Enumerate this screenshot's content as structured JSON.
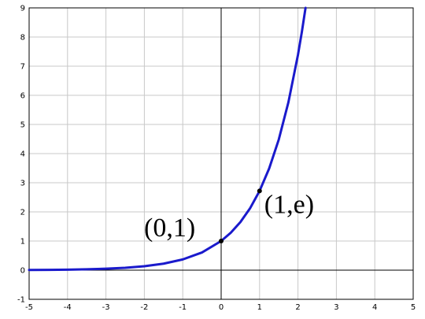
{
  "chart_data": {
    "type": "line",
    "function": "y = e^x",
    "xlim": [
      -5,
      5
    ],
    "ylim": [
      -1,
      9
    ],
    "grid": true,
    "x_ticks": [
      "-5",
      "-4",
      "-3",
      "-2",
      "-1",
      "0",
      "1",
      "2",
      "3",
      "4",
      "5"
    ],
    "y_ticks": [
      "-1",
      "0",
      "1",
      "2",
      "3",
      "4",
      "5",
      "6",
      "7",
      "8",
      "9"
    ],
    "series": [
      {
        "color": "#1a1acc",
        "x": [
          -5,
          -4.5,
          -4,
          -3.5,
          -3,
          -2.5,
          -2,
          -1.5,
          -1,
          -0.5,
          0,
          0.25,
          0.5,
          0.75,
          1,
          1.25,
          1.5,
          1.75,
          2,
          2.1,
          2.197
        ],
        "y": [
          0.007,
          0.011,
          0.018,
          0.03,
          0.05,
          0.082,
          0.135,
          0.223,
          0.368,
          0.607,
          1.0,
          1.284,
          1.649,
          2.117,
          2.718,
          3.49,
          4.482,
          5.755,
          7.389,
          8.166,
          9.0
        ]
      }
    ],
    "points": [
      {
        "label": "(0,1)",
        "x": 0,
        "y": 1
      },
      {
        "label": "(1,e)",
        "x": 1,
        "y": 2.718
      }
    ],
    "colors": {
      "grid": "#c8c8c8",
      "axis": "#000000",
      "frame": "#000000"
    }
  }
}
